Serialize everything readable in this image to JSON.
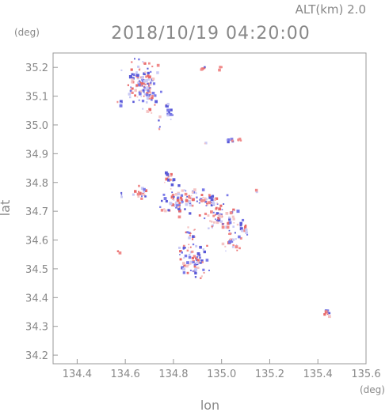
{
  "header": {
    "altitude_label": "ALT(km)  2.0",
    "timestamp": "2018/10/19 04:20:00"
  },
  "chart_data": {
    "type": "scatter",
    "title": "2018/10/19 04:20:00",
    "subtitle": "ALT(km)  2.0",
    "xlabel": "lon",
    "ylabel": "lat",
    "x_unit": "(deg)",
    "y_unit": "(deg)",
    "xlim": [
      134.3,
      135.6
    ],
    "ylim": [
      34.17,
      35.25
    ],
    "x_ticks": [
      "134.4",
      "134.6",
      "134.8",
      "135.0",
      "135.2",
      "135.4",
      "135.6"
    ],
    "y_ticks": [
      "34.2",
      "34.3",
      "34.4",
      "34.5",
      "34.6",
      "34.7",
      "34.8",
      "34.9",
      "35.0",
      "35.1",
      "35.2"
    ],
    "grid": false,
    "colors": {
      "positive": "#f08a8a",
      "negative": "#7a7ae8",
      "axis": "#999999",
      "text": "#888888"
    },
    "clusters": [
      {
        "lon": 134.66,
        "lat": 35.16,
        "sx": 0.03,
        "sy": 0.035,
        "n": 90
      },
      {
        "lon": 134.7,
        "lat": 35.1,
        "sx": 0.018,
        "sy": 0.03,
        "n": 40
      },
      {
        "lon": 134.57,
        "lat": 35.08,
        "sx": 0.006,
        "sy": 0.006,
        "n": 5
      },
      {
        "lon": 134.77,
        "lat": 35.05,
        "sx": 0.012,
        "sy": 0.018,
        "n": 16
      },
      {
        "lon": 134.74,
        "lat": 35.0,
        "sx": 0.004,
        "sy": 0.01,
        "n": 4
      },
      {
        "lon": 134.92,
        "lat": 35.2,
        "sx": 0.008,
        "sy": 0.004,
        "n": 5
      },
      {
        "lon": 134.99,
        "lat": 35.2,
        "sx": 0.006,
        "sy": 0.004,
        "n": 4
      },
      {
        "lon": 134.93,
        "lat": 34.94,
        "sx": 0.003,
        "sy": 0.003,
        "n": 2
      },
      {
        "lon": 135.03,
        "lat": 34.95,
        "sx": 0.008,
        "sy": 0.004,
        "n": 6
      },
      {
        "lon": 135.07,
        "lat": 34.95,
        "sx": 0.004,
        "sy": 0.004,
        "n": 4
      },
      {
        "lon": 134.78,
        "lat": 34.82,
        "sx": 0.012,
        "sy": 0.012,
        "n": 14
      },
      {
        "lon": 134.82,
        "lat": 34.74,
        "sx": 0.04,
        "sy": 0.025,
        "n": 90
      },
      {
        "lon": 134.66,
        "lat": 34.77,
        "sx": 0.015,
        "sy": 0.012,
        "n": 22
      },
      {
        "lon": 134.58,
        "lat": 34.76,
        "sx": 0.006,
        "sy": 0.004,
        "n": 3
      },
      {
        "lon": 134.95,
        "lat": 34.74,
        "sx": 0.03,
        "sy": 0.012,
        "n": 40
      },
      {
        "lon": 134.98,
        "lat": 34.68,
        "sx": 0.03,
        "sy": 0.018,
        "n": 40
      },
      {
        "lon": 135.05,
        "lat": 34.66,
        "sx": 0.02,
        "sy": 0.02,
        "n": 25
      },
      {
        "lon": 135.1,
        "lat": 34.64,
        "sx": 0.008,
        "sy": 0.01,
        "n": 6
      },
      {
        "lon": 135.14,
        "lat": 34.77,
        "sx": 0.003,
        "sy": 0.003,
        "n": 2
      },
      {
        "lon": 135.04,
        "lat": 34.6,
        "sx": 0.02,
        "sy": 0.018,
        "n": 22
      },
      {
        "lon": 134.87,
        "lat": 34.62,
        "sx": 0.012,
        "sy": 0.012,
        "n": 14
      },
      {
        "lon": 134.88,
        "lat": 34.53,
        "sx": 0.03,
        "sy": 0.03,
        "n": 80
      },
      {
        "lon": 134.57,
        "lat": 34.56,
        "sx": 0.003,
        "sy": 0.003,
        "n": 2
      },
      {
        "lon": 135.43,
        "lat": 34.355,
        "sx": 0.008,
        "sy": 0.006,
        "n": 12
      }
    ]
  }
}
